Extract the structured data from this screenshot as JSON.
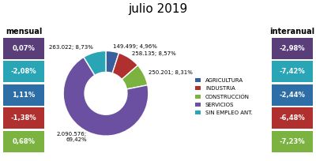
{
  "title": "julio 2019",
  "chart_data": [
    {
      "type": "table",
      "title": "mensual",
      "cells": [
        "0,07%",
        "-2,08%",
        "1,11%",
        "-1,38%",
        "0,68%"
      ],
      "colors": [
        "#5a3e7a",
        "#2aa5b5",
        "#2e6ea6",
        "#b03030",
        "#7cb340"
      ]
    },
    {
      "type": "pie",
      "categories": [
        "AGRICULTURA",
        "INDUSTRIA",
        "CONSTRUCCIÓN",
        "SERVICIOS",
        "SIN EMPLEO ANT."
      ],
      "values": [
        149499,
        258135,
        250201,
        2090576,
        263022
      ],
      "value_labels": [
        "149.499; 4,96%",
        "258.135; 8,57%",
        "250.201; 8,31%",
        "2.090.576;\n69,42%",
        "263.022; 8,73%"
      ],
      "colors": [
        "#3a5f9e",
        "#b03030",
        "#7cb340",
        "#6b4fa0",
        "#2aa5b5"
      ],
      "data_labels": true,
      "legend": "center left"
    },
    {
      "type": "table",
      "title": "interanual",
      "cells": [
        "-2,98%",
        "-7,42%",
        "-2,44%",
        "-6,48%",
        "-7,23%"
      ],
      "colors": [
        "#5a3e7a",
        "#2aa5b5",
        "#2e6ea6",
        "#b03030",
        "#7cb340"
      ]
    }
  ]
}
